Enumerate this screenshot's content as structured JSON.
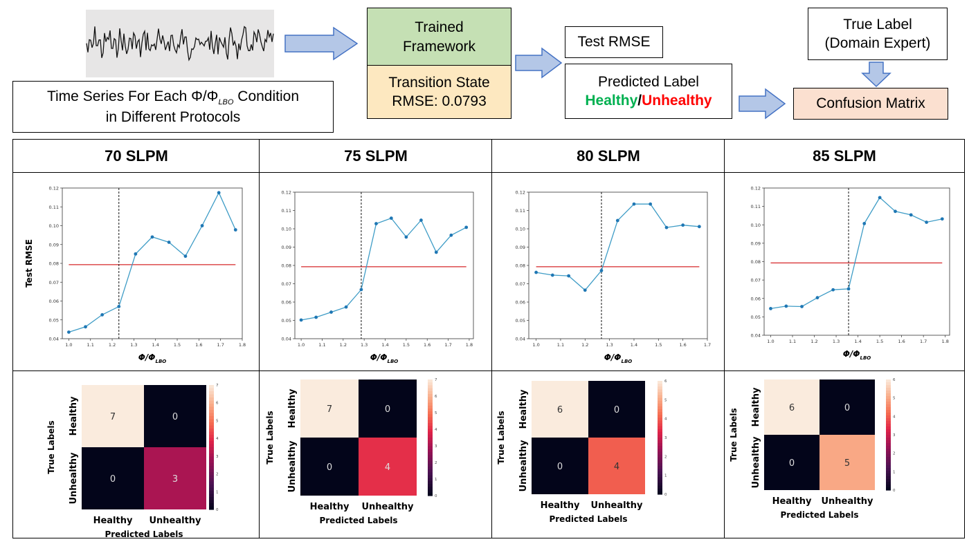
{
  "pipeline": {
    "time_series_label": "Time Series For Each Φ/Φ",
    "time_series_sub": "LBO",
    "time_series_suffix": " Condition",
    "time_series_line2": "in Different Protocols",
    "trained_framework_line1": "Trained",
    "trained_framework_line2": "Framework",
    "transition_line1": "Transition State",
    "transition_line2": "RMSE: 0.0793",
    "test_rmse": "Test RMSE",
    "predicted_label": "Predicted Label",
    "healthy": "Healthy",
    "slash": "/",
    "unhealthy": "Unhealthy",
    "true_label_line1": "True Label",
    "true_label_line2": "(Domain Expert)",
    "confusion_matrix": "Confusion Matrix"
  },
  "colors": {
    "green_box": "#c5e0b4",
    "orange_box": "#fde8c0",
    "peach_box": "#fbe0d0",
    "arrow_fill": "#b4c7e7",
    "arrow_stroke": "#4472c4",
    "line_color": "#3e9cc6",
    "threshold_color": "#d62728",
    "healthy_color": "#00b050",
    "unhealthy_color": "#ff0000"
  },
  "panels": [
    {
      "title": "70 SLPM"
    },
    {
      "title": "75 SLPM"
    },
    {
      "title": "80 SLPM"
    },
    {
      "title": "85 SLPM"
    }
  ],
  "chart_data": [
    {
      "type": "line",
      "title": "70 SLPM",
      "ylabel": "Test RMSE",
      "xlabel": "Φ/Φ_LBO",
      "x": [
        1.0,
        1.077,
        1.154,
        1.231,
        1.308,
        1.385,
        1.462,
        1.538,
        1.615,
        1.692,
        1.769
      ],
      "y": [
        0.0435,
        0.0463,
        0.0527,
        0.0571,
        0.085,
        0.094,
        0.0912,
        0.0838,
        0.1,
        0.1175,
        0.0978
      ],
      "xlim": [
        0.97,
        1.8
      ],
      "ylim": [
        0.04,
        0.12
      ],
      "xticks": [
        "1.0",
        "1.1",
        "1.2",
        "1.3",
        "1.4",
        "1.5",
        "1.6",
        "1.7",
        "1.8"
      ],
      "yticks": [
        "0.04",
        "0.05",
        "0.06",
        "0.07",
        "0.08",
        "0.09",
        "0.10",
        "0.11",
        "0.12"
      ],
      "threshold": 0.0793,
      "vline": 1.231
    },
    {
      "type": "line",
      "title": "75 SLPM",
      "xlabel": "Φ/Φ_LBO",
      "x": [
        1.0,
        1.071,
        1.143,
        1.214,
        1.286,
        1.357,
        1.429,
        1.5,
        1.571,
        1.643,
        1.714,
        1.786
      ],
      "y": [
        0.0502,
        0.0517,
        0.0545,
        0.0573,
        0.0668,
        0.1028,
        0.1058,
        0.0955,
        0.1047,
        0.0872,
        0.0965,
        0.1008
      ],
      "xlim": [
        0.97,
        1.82
      ],
      "ylim": [
        0.04,
        0.12
      ],
      "xticks": [
        "1.0",
        "1.1",
        "1.2",
        "1.3",
        "1.4",
        "1.5",
        "1.6",
        "1.7",
        "1.8"
      ],
      "yticks": [
        "0.04",
        "0.05",
        "0.06",
        "0.07",
        "0.08",
        "0.09",
        "0.10",
        "0.11",
        "0.12"
      ],
      "threshold": 0.0793,
      "vline": 1.286
    },
    {
      "type": "line",
      "title": "80 SLPM",
      "xlabel": "Φ/Φ_LBO",
      "x": [
        1.0,
        1.067,
        1.133,
        1.2,
        1.267,
        1.333,
        1.4,
        1.467,
        1.533,
        1.6,
        1.667
      ],
      "y": [
        0.0762,
        0.0747,
        0.0743,
        0.0665,
        0.0772,
        0.1045,
        0.1135,
        0.1135,
        0.1007,
        0.102,
        0.1012
      ],
      "xlim": [
        0.97,
        1.7
      ],
      "ylim": [
        0.04,
        0.12
      ],
      "xticks": [
        "1.0",
        "1.1",
        "1.2",
        "1.3",
        "1.4",
        "1.5",
        "1.6",
        "1.7"
      ],
      "yticks": [
        "0.04",
        "0.05",
        "0.06",
        "0.07",
        "0.08",
        "0.09",
        "0.10",
        "0.11",
        "0.12"
      ],
      "threshold": 0.0793,
      "vline": 1.267
    },
    {
      "type": "line",
      "title": "85 SLPM",
      "xlabel": "Φ/Φ_LBO",
      "x": [
        1.0,
        1.071,
        1.143,
        1.214,
        1.286,
        1.357,
        1.429,
        1.5,
        1.571,
        1.643,
        1.714,
        1.786
      ],
      "y": [
        0.0545,
        0.0558,
        0.0556,
        0.0604,
        0.0647,
        0.0652,
        0.1007,
        0.1148,
        0.1073,
        0.1054,
        0.1014,
        0.1032
      ],
      "xlim": [
        0.97,
        1.82
      ],
      "ylim": [
        0.04,
        0.12
      ],
      "xticks": [
        "1.0",
        "1.1",
        "1.2",
        "1.3",
        "1.4",
        "1.5",
        "1.6",
        "1.7",
        "1.8"
      ],
      "yticks": [
        "0.04",
        "0.05",
        "0.06",
        "0.07",
        "0.08",
        "0.09",
        "0.10",
        "0.11",
        "0.12"
      ],
      "threshold": 0.0793,
      "vline": 1.357
    },
    {
      "type": "heatmap",
      "title": "70 SLPM confusion matrix",
      "xlabel": "Predicted Labels",
      "ylabel": "True Labels",
      "xtick_labels": [
        "Healthy",
        "Unhealthy"
      ],
      "ytick_labels": [
        "Healthy",
        "Unhealthy"
      ],
      "values": [
        [
          7,
          0
        ],
        [
          0,
          3
        ]
      ],
      "vmax": 7,
      "colorbar_ticks": [
        "0",
        "1",
        "2",
        "3",
        "4",
        "5",
        "6",
        "7"
      ]
    },
    {
      "type": "heatmap",
      "title": "75 SLPM confusion matrix",
      "xlabel": "Predicted Labels",
      "ylabel": "True Labels",
      "xtick_labels": [
        "Healthy",
        "Unhealthy"
      ],
      "ytick_labels": [
        "Healthy",
        "Unhealthy"
      ],
      "values": [
        [
          7,
          0
        ],
        [
          0,
          4
        ]
      ],
      "vmax": 7,
      "colorbar_ticks": [
        "0",
        "1",
        "2",
        "3",
        "4",
        "5",
        "6",
        "7"
      ]
    },
    {
      "type": "heatmap",
      "title": "80 SLPM confusion matrix",
      "xlabel": "Predicted Labels",
      "ylabel": "True Labels",
      "xtick_labels": [
        "Healthy",
        "Unhealthy"
      ],
      "ytick_labels": [
        "Healthy",
        "Unhealthy"
      ],
      "values": [
        [
          6,
          0
        ],
        [
          0,
          4
        ]
      ],
      "vmax": 6,
      "colorbar_ticks": [
        "0",
        "1",
        "2",
        "3",
        "4",
        "5",
        "6"
      ]
    },
    {
      "type": "heatmap",
      "title": "85 SLPM confusion matrix",
      "xlabel": "Predicted Labels",
      "ylabel": "True Labels",
      "xtick_labels": [
        "Healthy",
        "Unhealthy"
      ],
      "ytick_labels": [
        "Healthy",
        "Unhealthy"
      ],
      "values": [
        [
          6,
          0
        ],
        [
          0,
          5
        ]
      ],
      "vmax": 6,
      "colorbar_ticks": [
        "0",
        "1",
        "2",
        "3",
        "4",
        "5",
        "6"
      ]
    }
  ]
}
